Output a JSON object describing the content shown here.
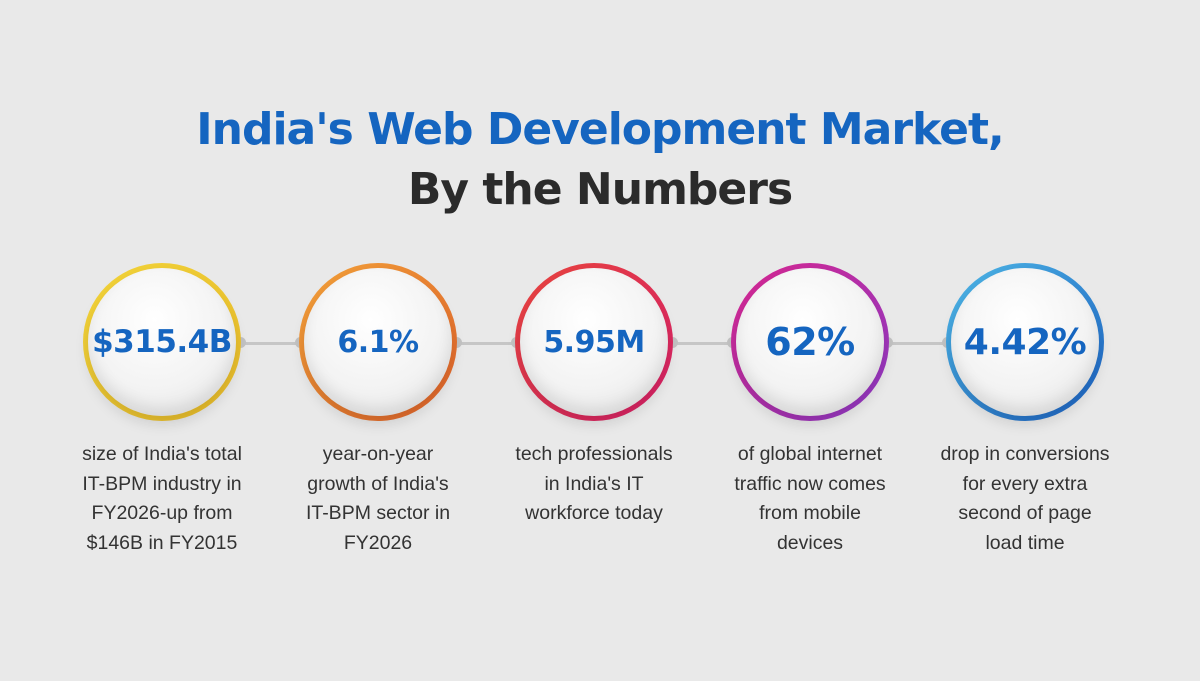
{
  "title_line1": "India's Web Development Market,",
  "title_line2": "By the Numbers",
  "stats": [
    {
      "value": "$315.4B",
      "description": "size of India's total\nIT-BPM industry in\nFY2026-up from\n$146B in FY2015",
      "ring_colors": [
        "#f2d43a",
        "#e9bb2a"
      ]
    },
    {
      "value": "6.1%",
      "description": "year-on-year\ngrowth of India's\nIT-BPM sector in\nFY2026",
      "ring_colors": [
        "#f2a23a",
        "#e0612a"
      ]
    },
    {
      "value": "5.95M",
      "description": "tech professionals\nin India's IT\nworkforce today",
      "ring_colors": [
        "#e8453d",
        "#d81f6a"
      ]
    },
    {
      "value": "62%",
      "description": "of global internet\ntraffic now comes\nfrom mobile\ndevices",
      "ring_colors": [
        "#d8268e",
        "#8e3ac9"
      ]
    },
    {
      "value": "4.42%",
      "description": "drop in conversions\nfor every extra\nsecond of page\nload time",
      "ring_colors": [
        "#4fb8e6",
        "#1c62c4"
      ]
    }
  ],
  "colors": {
    "accent": "#1565c0",
    "title_dark": "#2b2b2b",
    "background": "#e9e9e9"
  }
}
